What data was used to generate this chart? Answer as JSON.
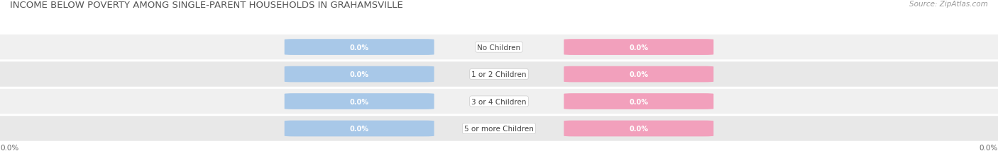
{
  "title": "INCOME BELOW POVERTY AMONG SINGLE-PARENT HOUSEHOLDS IN GRAHAMSVILLE",
  "source": "Source: ZipAtlas.com",
  "categories": [
    "No Children",
    "1 or 2 Children",
    "3 or 4 Children",
    "5 or more Children"
  ],
  "single_father_values": [
    0.0,
    0.0,
    0.0,
    0.0
  ],
  "single_mother_values": [
    0.0,
    0.0,
    0.0,
    0.0
  ],
  "father_color": "#a8c8e8",
  "mother_color": "#f2a0bc",
  "row_bg_colors": [
    "#f0f0f0",
    "#e8e8e8",
    "#f0f0f0",
    "#e8e8e8"
  ],
  "axis_label_left": "0.0%",
  "axis_label_right": "0.0%",
  "title_fontsize": 9.5,
  "source_fontsize": 7.5,
  "bar_label_fontsize": 7,
  "category_fontsize": 7.5,
  "legend_fontsize": 8,
  "background_color": "#ffffff"
}
